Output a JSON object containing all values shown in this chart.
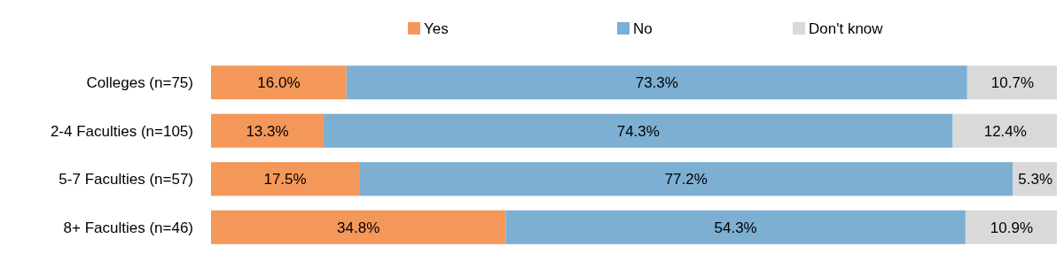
{
  "chart_data": {
    "type": "bar",
    "orientation": "horizontal",
    "stacked": true,
    "legend": "top",
    "categories": [
      "Colleges (n=75)",
      "2-4 Faculties (n=105)",
      "5-7 Faculties (n=57)",
      "8+ Faculties (n=46)"
    ],
    "series": [
      {
        "name": "Yes",
        "color": "#f4985a",
        "values": [
          16.0,
          13.3,
          17.5,
          34.8
        ],
        "value_labels": [
          "16.0%",
          "13.3%",
          "17.5%",
          "34.8%"
        ]
      },
      {
        "name": "No",
        "color": "#7dafd3",
        "values": [
          73.3,
          74.3,
          77.2,
          54.3
        ],
        "value_labels": [
          "73.3%",
          "74.3%",
          "77.2%",
          "54.3%"
        ]
      },
      {
        "name": "Don't know",
        "color": "#d9d9d9",
        "values": [
          10.7,
          12.4,
          5.3,
          10.9
        ],
        "value_labels": [
          "10.7%",
          "12.4%",
          "5.3%",
          "10.9%"
        ]
      }
    ]
  }
}
